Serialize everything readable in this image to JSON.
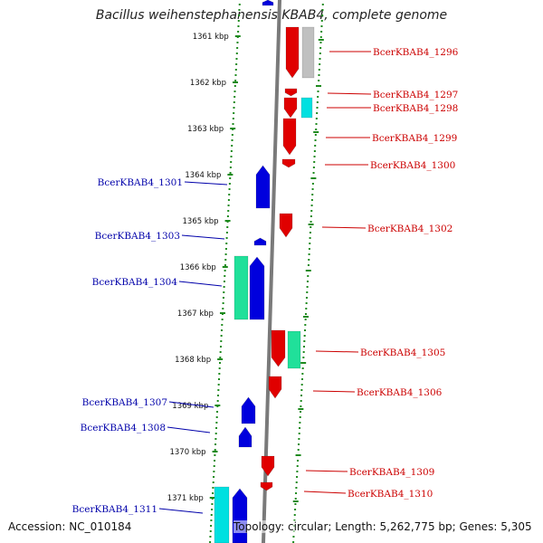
{
  "title": "Bacillus weihenstephanensis KBAB4, complete genome",
  "accession": "Accession: NC_010184",
  "summary": "Topology: circular; Length: 5,262,775 bp; Genes: 5,305",
  "colors": {
    "forward_gene": "#e00000",
    "reverse_gene": "#0000dd",
    "grey_feature": "#c0c0c0",
    "cyan_feature": "#00e0e0",
    "green_feature": "#20e09a",
    "backbone": "#7a7a7a",
    "ring_dots": "#1e8a1e",
    "right_label": "#cc0000",
    "left_label": "#0000aa"
  },
  "ticks": [
    {
      "label": "1361 kbp"
    },
    {
      "label": "1362 kbp"
    },
    {
      "label": "1363 kbp"
    },
    {
      "label": "1364 kbp"
    },
    {
      "label": "1365 kbp"
    },
    {
      "label": "1366 kbp"
    },
    {
      "label": "1367 kbp"
    },
    {
      "label": "1368 kbp"
    },
    {
      "label": "1369 kbp"
    },
    {
      "label": "1370 kbp"
    },
    {
      "label": "1371 kbp"
    }
  ],
  "right_labels": [
    {
      "text": "BcerKBAB4_1296"
    },
    {
      "text": "BcerKBAB4_1297"
    },
    {
      "text": "BcerKBAB4_1298"
    },
    {
      "text": "BcerKBAB4_1299"
    },
    {
      "text": "BcerKBAB4_1300"
    },
    {
      "text": "BcerKBAB4_1302"
    },
    {
      "text": "BcerKBAB4_1305"
    },
    {
      "text": "BcerKBAB4_1306"
    },
    {
      "text": "BcerKBAB4_1309"
    },
    {
      "text": "BcerKBAB4_1310"
    }
  ],
  "left_labels": [
    {
      "text": "BcerKBAB4_1301"
    },
    {
      "text": "BcerKBAB4_1303"
    },
    {
      "text": "BcerKBAB4_1304"
    },
    {
      "text": "BcerKBAB4_1307"
    },
    {
      "text": "BcerKBAB4_1308"
    },
    {
      "text": "BcerKBAB4_1311"
    }
  ]
}
